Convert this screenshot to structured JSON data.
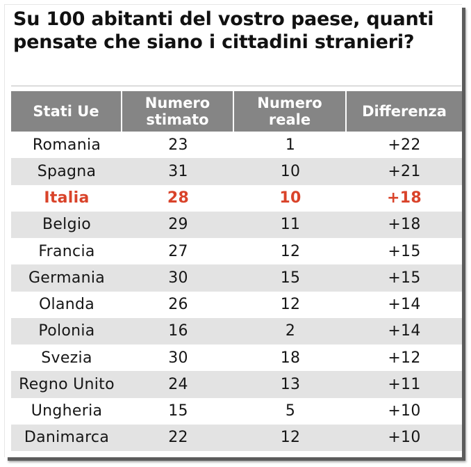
{
  "title": "Su 100 abitanti del vostro paese, quanti pensate che siano i cittadini stranieri?",
  "colors": {
    "header_bg": "#858585",
    "header_text": "#ffffff",
    "alt_row_bg": "#e3e3e3",
    "highlight_text": "#d9432a",
    "body_text": "#161616"
  },
  "chart_data": {
    "type": "table",
    "title": "Su 100 abitanti del vostro paese, quanti pensate che siano i cittadini stranieri?",
    "columns": [
      "Stati Ue",
      "Numero stimato",
      "Numero reale",
      "Differenza"
    ],
    "highlight_row": "Italia",
    "rows": [
      [
        "Romania",
        "23",
        "1",
        "+22"
      ],
      [
        "Spagna",
        "31",
        "10",
        "+21"
      ],
      [
        "Italia",
        "28",
        "10",
        "+18"
      ],
      [
        "Belgio",
        "29",
        "11",
        "+18"
      ],
      [
        "Francia",
        "27",
        "12",
        "+15"
      ],
      [
        "Germania",
        "30",
        "15",
        "+15"
      ],
      [
        "Olanda",
        "26",
        "12",
        "+14"
      ],
      [
        "Polonia",
        "16",
        "2",
        "+14"
      ],
      [
        "Svezia",
        "30",
        "18",
        "+12"
      ],
      [
        "Regno Unito",
        "24",
        "13",
        "+11"
      ],
      [
        "Ungheria",
        "15",
        "5",
        "+10"
      ],
      [
        "Danimarca",
        "22",
        "12",
        "+10"
      ]
    ]
  }
}
